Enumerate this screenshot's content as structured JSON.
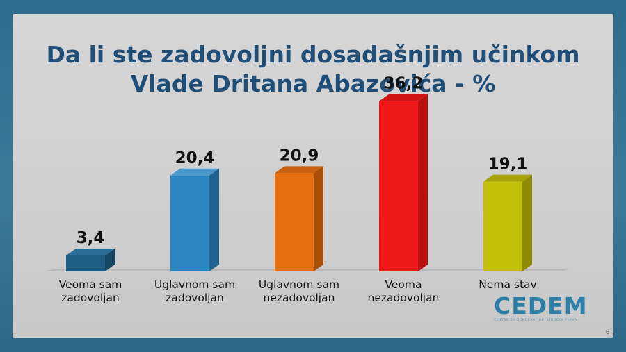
{
  "chart_data": {
    "type": "bar",
    "title_lines": [
      "Da li ste zadovoljni dosadašnjim učinkom",
      "Vlade Dritana Abazovića - %"
    ],
    "categories": [
      [
        "Veoma sam",
        "zadovoljan"
      ],
      [
        "Uglavnom sam",
        "zadovoljan"
      ],
      [
        "Uglavnom sam",
        "nezadovoljan"
      ],
      [
        "Veoma",
        "nezadovoljan"
      ],
      [
        "Nema stav"
      ]
    ],
    "values": [
      3.4,
      20.4,
      20.9,
      36.2,
      19.1
    ],
    "value_labels": [
      "3,4",
      "20,4",
      "20,9",
      "36,2",
      "19,1"
    ],
    "colors": [
      "#1f5f86",
      "#2e86c1",
      "#e67010",
      "#f01818",
      "#c4c00a"
    ],
    "side_colors": [
      "#164766",
      "#1f6592",
      "#a84f08",
      "#b80f0f",
      "#8e8a06"
    ],
    "top_colors": [
      "#2a6e96",
      "#4a98cc",
      "#c76010",
      "#d31414",
      "#a6a208"
    ],
    "ylim": [
      0,
      40
    ],
    "grid": false,
    "legend": "none"
  },
  "logo": {
    "word": "CEDEM",
    "subtitle": "CENTAR ZA DEMOKRATIJU I LJUDSKA PRAVA"
  },
  "page_number": "6"
}
